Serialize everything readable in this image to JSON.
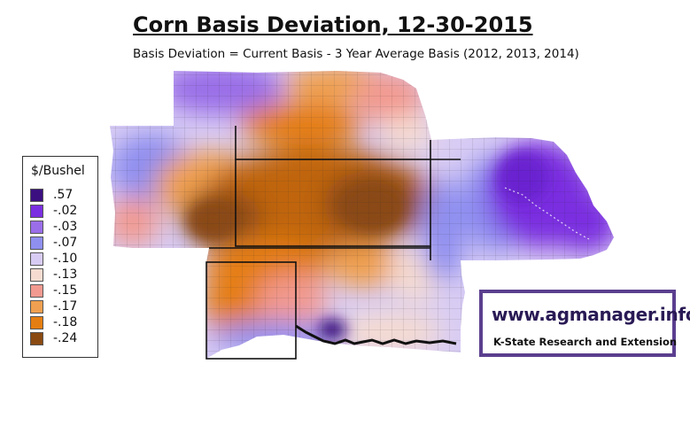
{
  "header": {
    "title": "Corn Basis Deviation, 12-30-2015",
    "subtitle": "Basis Deviation = Current Basis - 3 Year Average Basis (2012, 2013, 2014)"
  },
  "legend": {
    "title": "$/Bushel",
    "items": [
      {
        "label": ".57",
        "color": "#3b0f80"
      },
      {
        "label": "-.02",
        "color": "#7a2fe0"
      },
      {
        "label": "-.03",
        "color": "#9a6ee8"
      },
      {
        "label": "-.07",
        "color": "#8f8ff0"
      },
      {
        "label": "-.10",
        "color": "#d8ccf4"
      },
      {
        "label": "-.13",
        "color": "#f6dcd0"
      },
      {
        "label": "-.15",
        "color": "#f29a90"
      },
      {
        "label": "-.17",
        "color": "#f0a050"
      },
      {
        "label": "-.18",
        "color": "#e57e12"
      },
      {
        "label": "-.24",
        "color": "#8a4a12"
      }
    ]
  },
  "logo": {
    "url_text": "www.agmanager.info",
    "org_text": "K-State Research and Extension"
  },
  "map_colors": {
    "deepest": "#8a4a12",
    "dark_orange": "#c0650f",
    "orange": "#e57e12",
    "light_orange": "#f0a050",
    "salmon": "#f29a90",
    "peach": "#f6dcd0",
    "lavender": "#d8ccf4",
    "periwinkle": "#8f8ff0",
    "violet": "#9a6ee8",
    "purple": "#7a2fe0",
    "deep_purple": "#3b0f80"
  }
}
